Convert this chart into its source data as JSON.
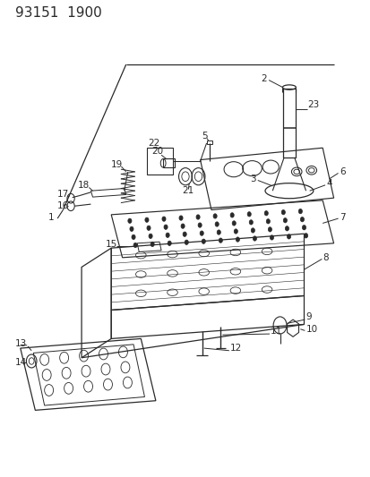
{
  "title": "93151  1900",
  "bg_color": "#ffffff",
  "line_color": "#2a2a2a",
  "title_fontsize": 11,
  "label_fontsize": 7.5,
  "fig_width": 4.14,
  "fig_height": 5.33
}
